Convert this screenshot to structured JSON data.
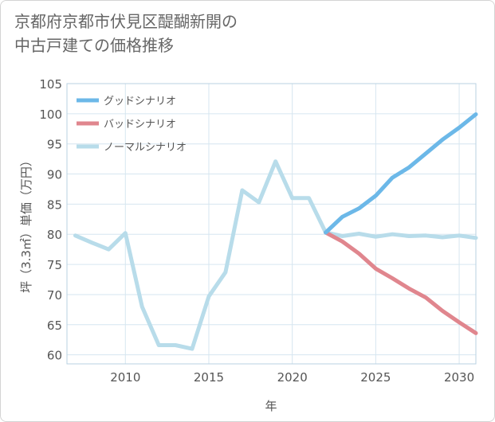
{
  "title": "京都府京都市伏見区醍醐新開の\n中古戸建ての価格推移",
  "chart_data": {
    "type": "line",
    "title": "京都府京都市伏見区醍醐新開の中古戸建ての価格推移",
    "xlabel": "年",
    "ylabel": "坪（3.3㎡）単価（万円）",
    "xlim": [
      2006.5,
      2031
    ],
    "ylim": [
      58.5,
      105
    ],
    "xticks": [
      2010,
      2015,
      2020,
      2025,
      2030
    ],
    "yticks": [
      60,
      65,
      70,
      75,
      80,
      85,
      90,
      95,
      100,
      105
    ],
    "grid": true,
    "legend_position": "top-left",
    "series": [
      {
        "name": "グッドシナリオ",
        "color": "#6cb8e8",
        "x": [
          2022,
          2023,
          2024,
          2025,
          2026,
          2027,
          2028,
          2029,
          2030,
          2031
        ],
        "y": [
          80.3,
          82.9,
          84.3,
          86.4,
          89.4,
          91.1,
          93.4,
          95.7,
          97.7,
          99.9
        ]
      },
      {
        "name": "バッドシナリオ",
        "color": "#e0868e",
        "x": [
          2022,
          2023,
          2024,
          2025,
          2026,
          2027,
          2028,
          2029,
          2030,
          2031
        ],
        "y": [
          80.3,
          78.8,
          76.8,
          74.3,
          72.7,
          71.0,
          69.5,
          67.3,
          65.4,
          63.6
        ]
      },
      {
        "name": "ノーマルシナリオ",
        "color": "#b8dcea",
        "x": [
          2007,
          2008,
          2009,
          2010,
          2011,
          2012,
          2013,
          2014,
          2015,
          2016,
          2017,
          2018,
          2019,
          2020,
          2021,
          2022,
          2023,
          2024,
          2025,
          2026,
          2027,
          2028,
          2029,
          2030,
          2031
        ],
        "y": [
          79.8,
          78.6,
          77.5,
          80.2,
          68.0,
          61.6,
          61.6,
          61.0,
          69.7,
          73.7,
          87.3,
          85.3,
          92.1,
          86.0,
          86.0,
          80.3,
          79.7,
          80.1,
          79.6,
          80.0,
          79.7,
          79.8,
          79.5,
          79.8,
          79.4
        ]
      }
    ]
  }
}
